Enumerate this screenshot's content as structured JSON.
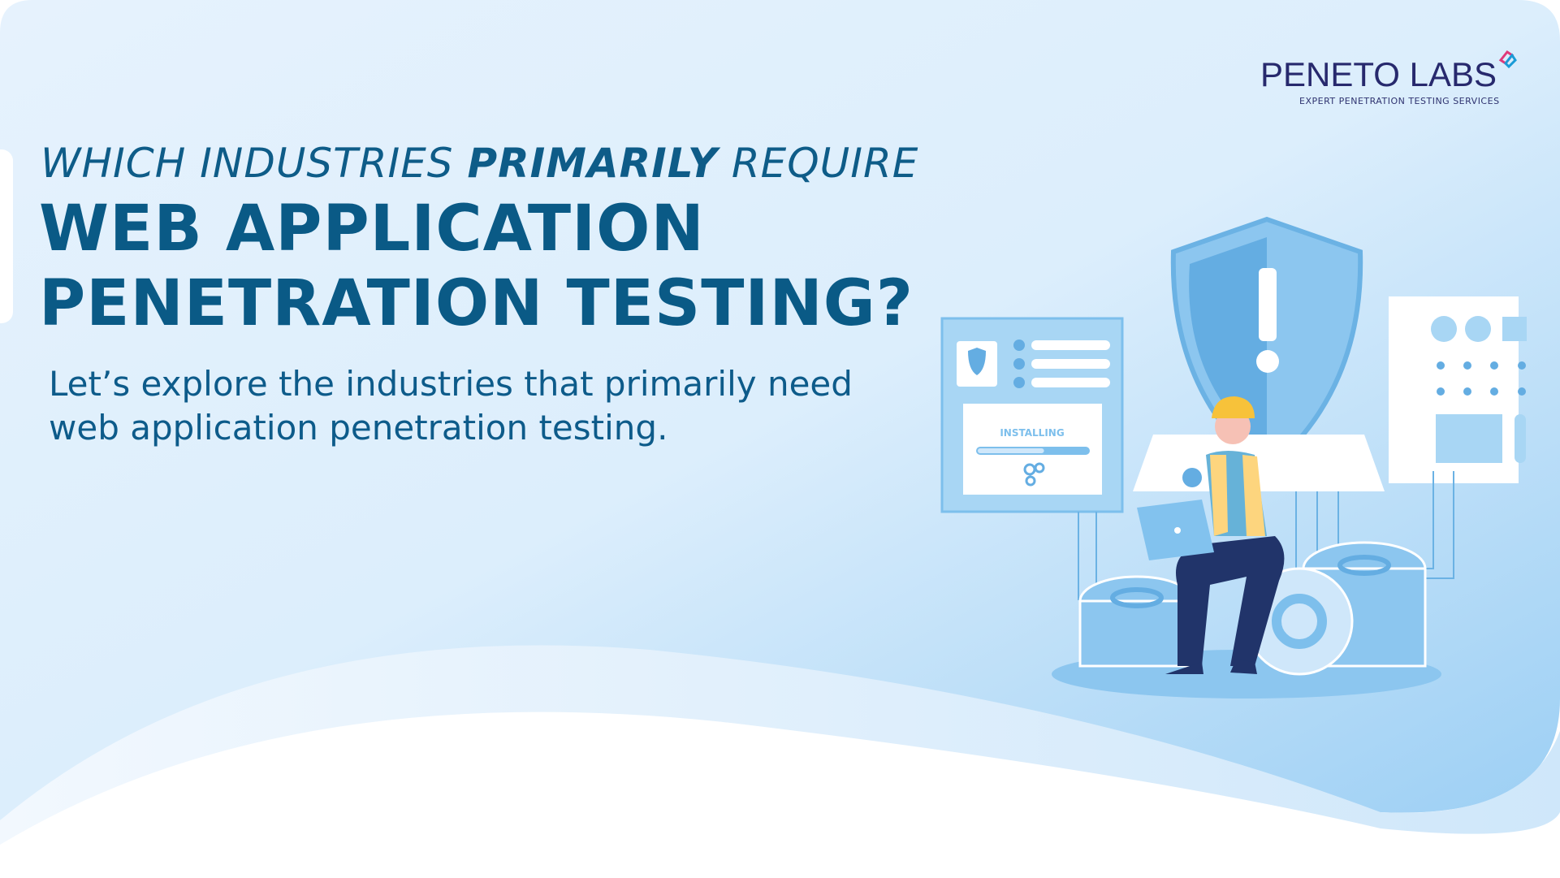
{
  "header": {
    "kicker_pre": "WHICH INDUSTRIES ",
    "kicker_bold": "PRIMARILY",
    "kicker_post": " REQUIRE",
    "title_line1": "WEB APPLICATION",
    "title_line2": "PENETRATION TESTING?",
    "subtitle_line1": "Let’s explore the industries that primarily need",
    "subtitle_line2": "web application penetration testing."
  },
  "logo": {
    "name": "PENETO LABS",
    "tagline": "EXPERT PENETRATION TESTING SERVICES"
  },
  "illustration": {
    "installing_label": "INSTALLING",
    "progress_percent": 60
  },
  "colors": {
    "title": "#0a5a86",
    "logo": "#27296d",
    "background_light": "#e4f1fc",
    "background_mid": "#a8d4f5",
    "accent_blue": "#6bb2e4",
    "helmet": "#f7c23a"
  }
}
